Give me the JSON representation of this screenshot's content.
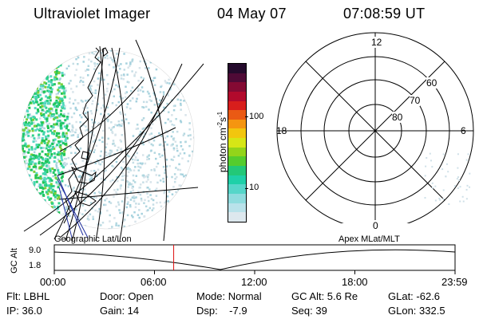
{
  "header": {
    "title": "Ultraviolet Imager",
    "date": "04 May 07",
    "time": "07:08:59 UT"
  },
  "colorbar": {
    "label": "photon cm",
    "label_sup1": "-2",
    "label_mid": "s",
    "label_sup2": "-1",
    "ticks": [
      "100",
      "10"
    ],
    "colors": [
      "#dde8ee",
      "#b9e2ea",
      "#8fdcde",
      "#56d6c9",
      "#1fd0a8",
      "#23c878",
      "#55cc2e",
      "#93d41a",
      "#d6e616",
      "#f2c60e",
      "#f59510",
      "#ea5a14",
      "#d81e1c",
      "#b20a2c",
      "#840a33",
      "#4f0a36",
      "#240a2c"
    ]
  },
  "polar": {
    "mlt_labels": [
      "12",
      "18",
      "6",
      "0"
    ],
    "mlat_labels": [
      "60",
      "70",
      "80"
    ]
  },
  "timeline": {
    "left_title": "Geographic Lat/Lon",
    "right_title": "Apex MLat/MLT",
    "axis_label": "GC Alt",
    "y_ticks": [
      "9.0",
      "1.8"
    ],
    "x_ticks": [
      "00:00",
      "06:00",
      "12:00",
      "18:00",
      "23:59"
    ],
    "marker_time_hours": 7.15
  },
  "info": {
    "row1": [
      "Flt: LBHL",
      "Door: Open",
      "Mode: Normal",
      "GC Alt: 5.6 Re",
      "GLat: -62.6"
    ],
    "row2": [
      "IP: 36.0",
      "Gain: 14",
      "Dsp:    -7.9",
      "Seq: 39",
      "GLon: 332.5"
    ]
  },
  "colors": {
    "marker": "#dd1111",
    "line": "#000000"
  }
}
